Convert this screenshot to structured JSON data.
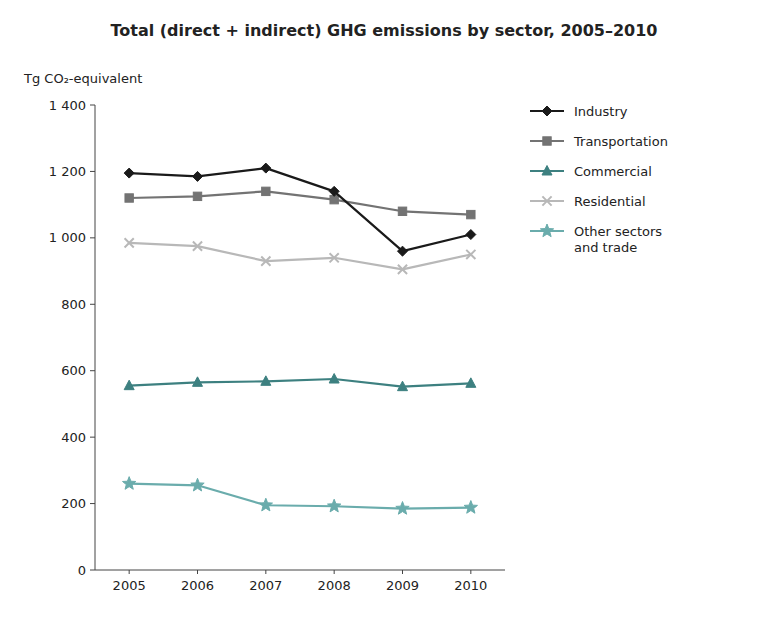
{
  "chart_data": {
    "type": "line",
    "title": "Total (direct + indirect) GHG emissions by sector, 2005–2010",
    "ylabel": "Tg CO₂-equivalent",
    "x": [
      2005,
      2006,
      2007,
      2008,
      2009,
      2010
    ],
    "xlim": [
      2004.5,
      2010.5
    ],
    "xticks": [
      2005,
      2006,
      2007,
      2008,
      2009,
      2010
    ],
    "ylim": [
      0,
      1400
    ],
    "yticks": [
      0,
      200,
      400,
      600,
      800,
      {
        "value": 1000,
        "label": "1 000"
      },
      {
        "value": 1200,
        "label": "1 200"
      },
      {
        "value": 1400,
        "label": "1 400"
      }
    ],
    "grid": false,
    "legend": "right",
    "series": [
      {
        "name": "Industry",
        "color": "#1a1a1a",
        "marker": "diamond",
        "values": [
          1195,
          1185,
          1210,
          1140,
          960,
          1010
        ]
      },
      {
        "name": "Transportation",
        "color": "#737373",
        "marker": "square",
        "values": [
          1120,
          1125,
          1140,
          1115,
          1080,
          1070
        ]
      },
      {
        "name": "Commercial",
        "color": "#3d8080",
        "marker": "triangle",
        "values": [
          555,
          565,
          568,
          575,
          552,
          562
        ]
      },
      {
        "name": "Residential",
        "color": "#b8b8b8",
        "marker": "x",
        "values": [
          985,
          975,
          930,
          940,
          905,
          950
        ]
      },
      {
        "name": "Other sectors\nand trade",
        "color": "#6aacac",
        "marker": "star",
        "values": [
          260,
          255,
          195,
          192,
          185,
          188
        ]
      }
    ]
  }
}
